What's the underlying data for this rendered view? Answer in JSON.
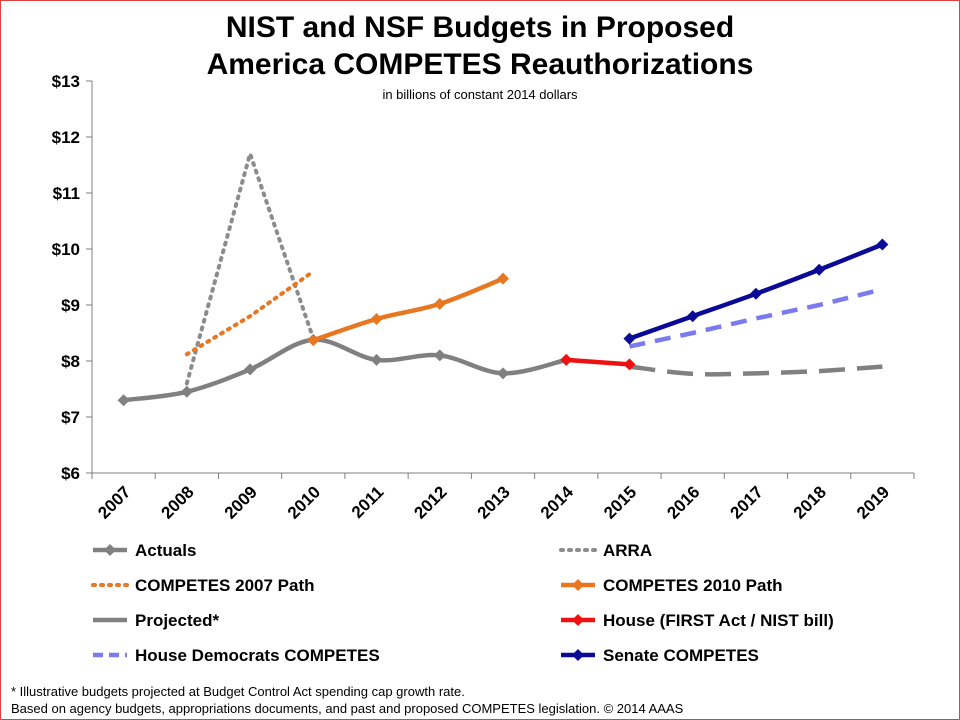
{
  "chart_data": {
    "type": "line",
    "title_line1": "NIST and NSF Budgets in Proposed",
    "title_line2": "America COMPETES Reauthorizations",
    "subtitle": "in billions of constant 2014 dollars",
    "categories": [
      "2007",
      "2008",
      "2009",
      "2010",
      "2011",
      "2012",
      "2013",
      "2014",
      "2015",
      "2016",
      "2017",
      "2018",
      "2019"
    ],
    "ylim": [
      6,
      13
    ],
    "ytick_labels": [
      "$6",
      "$7",
      "$8",
      "$9",
      "$10",
      "$11",
      "$12",
      "$13"
    ],
    "grid": false,
    "legend_position": "bottom",
    "series": [
      {
        "name": "Actuals",
        "color": "#808080",
        "style": "solid",
        "marker": true,
        "points": [
          [
            "2007",
            7.3
          ],
          [
            "2008",
            7.45
          ],
          [
            "2009",
            7.85
          ],
          [
            "2010",
            8.38
          ],
          [
            "2011",
            8.02
          ],
          [
            "2012",
            8.1
          ],
          [
            "2013",
            7.78
          ],
          [
            "2014",
            8.02
          ]
        ]
      },
      {
        "name": "ARRA",
        "color": "#8c8c8c",
        "style": "dotted",
        "marker": false,
        "points": [
          [
            "2008",
            7.6
          ],
          [
            "2009",
            11.7
          ],
          [
            "2010",
            8.4
          ]
        ]
      },
      {
        "name": "COMPETES 2007 Path",
        "color": "#e87722",
        "style": "dotted",
        "marker": false,
        "points": [
          [
            "2008",
            8.12
          ],
          [
            "2009",
            8.8
          ],
          [
            "2010",
            9.6
          ]
        ]
      },
      {
        "name": "COMPETES 2010 Path",
        "color": "#e87722",
        "style": "solid",
        "marker": true,
        "points": [
          [
            "2010",
            8.37
          ],
          [
            "2011",
            8.75
          ],
          [
            "2012",
            9.02
          ],
          [
            "2013",
            9.47
          ]
        ]
      },
      {
        "name": "Projected*",
        "color": "#808080",
        "style": "longdash",
        "marker": false,
        "points": [
          [
            "2015",
            7.9
          ],
          [
            "2016",
            7.77
          ],
          [
            "2017",
            7.78
          ],
          [
            "2018",
            7.82
          ],
          [
            "2019",
            7.9
          ]
        ]
      },
      {
        "name": "House (FIRST Act / NIST bill)",
        "color": "#ee1111",
        "style": "solid",
        "marker": true,
        "points": [
          [
            "2014",
            8.02
          ],
          [
            "2015",
            7.94
          ]
        ]
      },
      {
        "name": "House Democrats COMPETES",
        "color": "#7b7bef",
        "style": "dashed",
        "marker": false,
        "points": [
          [
            "2015",
            8.26
          ],
          [
            "2016",
            8.5
          ],
          [
            "2017",
            8.76
          ],
          [
            "2018",
            9.0
          ],
          [
            "2019",
            9.28
          ]
        ]
      },
      {
        "name": "Senate COMPETES",
        "color": "#0a0a96",
        "style": "solid",
        "marker": true,
        "points": [
          [
            "2015",
            8.4
          ],
          [
            "2016",
            8.8
          ],
          [
            "2017",
            9.2
          ],
          [
            "2018",
            9.63
          ],
          [
            "2019",
            10.08
          ]
        ]
      }
    ]
  },
  "footnotes": {
    "line1": "* Illustrative budgets projected at Budget Control Act spending cap growth rate.",
    "line2": "Based on agency budgets, appropriations documents, and past and proposed COMPETES legislation. © 2014 AAAS"
  }
}
